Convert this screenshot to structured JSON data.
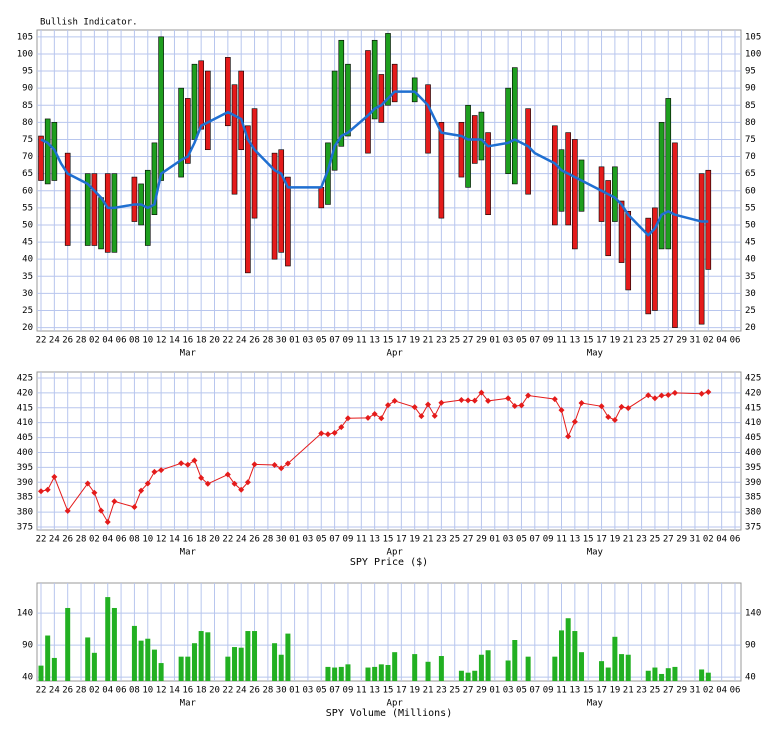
{
  "chart_data": [
    {
      "type": "range-bar",
      "title": "Bullish Indicator.",
      "x": [
        0,
        1,
        2,
        3,
        4,
        7,
        8,
        9,
        10,
        11,
        14,
        15,
        16,
        17,
        18,
        21,
        22,
        23,
        24,
        25,
        28,
        29,
        30,
        31,
        32,
        35,
        36,
        37,
        38,
        42,
        43,
        44,
        45,
        46,
        49,
        50,
        51,
        52,
        53,
        56,
        57,
        58,
        59,
        60,
        63,
        64,
        65,
        66,
        67,
        70,
        71,
        72,
        73,
        74,
        77,
        78,
        79,
        80,
        81,
        84,
        85,
        86,
        87,
        88,
        91,
        92,
        93,
        94,
        95,
        99,
        100
      ],
      "open": [
        76,
        62,
        63,
        null,
        71,
        44,
        65,
        43,
        65,
        42,
        64,
        50,
        44,
        53,
        63,
        64,
        87,
        75,
        98,
        95,
        99,
        91,
        95,
        79,
        84,
        71,
        72,
        64,
        null,
        61,
        56,
        66,
        73,
        76,
        101,
        81,
        94,
        85,
        97,
        86,
        null,
        91,
        null,
        80,
        80,
        61,
        82,
        69,
        77,
        65,
        62,
        null,
        84,
        null,
        79,
        54,
        77,
        75,
        54,
        67,
        63,
        51,
        57,
        54,
        52,
        55,
        43,
        43,
        74,
        65,
        66
      ],
      "close": [
        63,
        81,
        80,
        null,
        44,
        65,
        44,
        58,
        42,
        65,
        51,
        62,
        66,
        74,
        105,
        90,
        68,
        97,
        78,
        72,
        79,
        59,
        72,
        36,
        52,
        40,
        42,
        38,
        null,
        55,
        74,
        95,
        104,
        97,
        71,
        104,
        80,
        106,
        86,
        93,
        null,
        71,
        null,
        52,
        64,
        85,
        68,
        83,
        53,
        90,
        96,
        null,
        59,
        null,
        50,
        72,
        50,
        43,
        69,
        51,
        41,
        67,
        39,
        31,
        24,
        25,
        80,
        87,
        20,
        21,
        37
      ],
      "up_color": "#1e9e1e",
      "down_color": "#e41b1b",
      "line": {
        "color": "#1f6fd1",
        "values": [
          75,
          74,
          72,
          68,
          65,
          62,
          60,
          58,
          55,
          55,
          56,
          56,
          55,
          56,
          65,
          69,
          70,
          74,
          79,
          80,
          83,
          82,
          81,
          75,
          72,
          66,
          65,
          61,
          61,
          61,
          66,
          73,
          76,
          77,
          82,
          84,
          85,
          87,
          89,
          89,
          87,
          85,
          81,
          77,
          76,
          75,
          75,
          75,
          73,
          74,
          75,
          74,
          73,
          71,
          68,
          66,
          65,
          64,
          63,
          60,
          59,
          58,
          56,
          53,
          47,
          49,
          53,
          54,
          53,
          51,
          51
        ]
      },
      "xlim": [
        -0.6,
        104.9
      ],
      "xticks": [
        {
          "value": 0,
          "label": "22"
        },
        {
          "value": 2,
          "label": "24"
        },
        {
          "value": 4,
          "label": "26"
        },
        {
          "value": 6,
          "label": "28"
        },
        {
          "value": 8,
          "label": "02"
        },
        {
          "value": 10,
          "label": "04"
        },
        {
          "value": 12,
          "label": "06"
        },
        {
          "value": 14,
          "label": "08"
        },
        {
          "value": 16,
          "label": "10"
        },
        {
          "value": 18,
          "label": "12"
        },
        {
          "value": 20,
          "label": "14"
        },
        {
          "value": 22,
          "label": "16"
        },
        {
          "value": 24,
          "label": "18"
        },
        {
          "value": 26,
          "label": "20"
        },
        {
          "value": 28,
          "label": "22"
        },
        {
          "value": 30,
          "label": "24"
        },
        {
          "value": 32,
          "label": "26"
        },
        {
          "value": 34,
          "label": "28"
        },
        {
          "value": 36,
          "label": "30"
        },
        {
          "value": 38,
          "label": "01"
        },
        {
          "value": 40,
          "label": "03"
        },
        {
          "value": 42,
          "label": "05"
        },
        {
          "value": 44,
          "label": "07"
        },
        {
          "value": 46,
          "label": "09"
        },
        {
          "value": 48,
          "label": "11"
        },
        {
          "value": 50,
          "label": "13"
        },
        {
          "value": 52,
          "label": "15"
        },
        {
          "value": 54,
          "label": "17"
        },
        {
          "value": 56,
          "label": "19"
        },
        {
          "value": 58,
          "label": "21"
        },
        {
          "value": 60,
          "label": "23"
        },
        {
          "value": 62,
          "label": "25"
        },
        {
          "value": 64,
          "label": "27"
        },
        {
          "value": 66,
          "label": "29"
        },
        {
          "value": 68,
          "label": "01"
        },
        {
          "value": 70,
          "label": "03"
        },
        {
          "value": 72,
          "label": "05"
        },
        {
          "value": 74,
          "label": "07"
        },
        {
          "value": 76,
          "label": "09"
        },
        {
          "value": 78,
          "label": "11"
        },
        {
          "value": 80,
          "label": "13"
        },
        {
          "value": 82,
          "label": "15"
        },
        {
          "value": 84,
          "label": "17"
        },
        {
          "value": 86,
          "label": "19"
        },
        {
          "value": 88,
          "label": "21"
        },
        {
          "value": 90,
          "label": "23"
        },
        {
          "value": 92,
          "label": "25"
        },
        {
          "value": 94,
          "label": "27"
        },
        {
          "value": 96,
          "label": "29"
        },
        {
          "value": 98,
          "label": "31"
        },
        {
          "value": 100,
          "label": "02"
        },
        {
          "value": 102,
          "label": "04"
        },
        {
          "value": 104,
          "label": "06"
        }
      ],
      "month_labels": [
        {
          "value": 22,
          "label": "Mar"
        },
        {
          "value": 53,
          "label": "Apr"
        },
        {
          "value": 83,
          "label": "May"
        }
      ],
      "ylim": [
        19,
        107
      ],
      "yticks": [
        20,
        25,
        30,
        35,
        40,
        45,
        50,
        55,
        60,
        65,
        70,
        75,
        80,
        85,
        90,
        95,
        100,
        105
      ],
      "grid": true
    },
    {
      "type": "line",
      "xlabel": "SPY Price ($)",
      "x": [
        0,
        1,
        2,
        4,
        7,
        8,
        9,
        10,
        11,
        14,
        15,
        16,
        17,
        18,
        21,
        22,
        23,
        24,
        25,
        28,
        29,
        30,
        31,
        32,
        35,
        36,
        37,
        42,
        43,
        44,
        45,
        46,
        49,
        50,
        51,
        52,
        53,
        56,
        57,
        58,
        59,
        60,
        63,
        64,
        65,
        66,
        67,
        70,
        71,
        72,
        73,
        77,
        78,
        79,
        80,
        81,
        84,
        85,
        86,
        87,
        88,
        91,
        92,
        93,
        94,
        95,
        99,
        100
      ],
      "values": [
        387.0,
        387.5,
        391.8,
        380.4,
        389.6,
        386.5,
        380.5,
        376.7,
        383.6,
        381.7,
        387.2,
        389.6,
        393.5,
        394.1,
        396.4,
        395.9,
        397.3,
        391.5,
        389.5,
        392.6,
        389.5,
        387.5,
        390.0,
        396.0,
        395.8,
        394.7,
        396.3,
        406.4,
        406.1,
        406.6,
        408.5,
        411.5,
        411.6,
        412.9,
        411.5,
        415.9,
        417.3,
        415.2,
        412.2,
        416.1,
        412.3,
        416.7,
        417.6,
        417.5,
        417.4,
        420.1,
        417.3,
        418.2,
        415.6,
        415.8,
        419.1,
        417.9,
        414.2,
        405.4,
        410.3,
        416.6,
        415.5,
        411.9,
        410.9,
        415.3,
        414.9,
        419.2,
        418.2,
        419.1,
        419.3,
        420.0,
        419.7,
        420.3
      ],
      "color": "#e41b1b",
      "xlim": [
        -0.6,
        104.9
      ],
      "xticks": [
        {
          "value": 0,
          "label": "22"
        },
        {
          "value": 2,
          "label": "24"
        },
        {
          "value": 4,
          "label": "26"
        },
        {
          "value": 6,
          "label": "28"
        },
        {
          "value": 8,
          "label": "02"
        },
        {
          "value": 10,
          "label": "04"
        },
        {
          "value": 12,
          "label": "06"
        },
        {
          "value": 14,
          "label": "08"
        },
        {
          "value": 16,
          "label": "10"
        },
        {
          "value": 18,
          "label": "12"
        },
        {
          "value": 20,
          "label": "14"
        },
        {
          "value": 22,
          "label": "16"
        },
        {
          "value": 24,
          "label": "18"
        },
        {
          "value": 26,
          "label": "20"
        },
        {
          "value": 28,
          "label": "22"
        },
        {
          "value": 30,
          "label": "24"
        },
        {
          "value": 32,
          "label": "26"
        },
        {
          "value": 34,
          "label": "28"
        },
        {
          "value": 36,
          "label": "30"
        },
        {
          "value": 38,
          "label": "01"
        },
        {
          "value": 40,
          "label": "03"
        },
        {
          "value": 42,
          "label": "05"
        },
        {
          "value": 44,
          "label": "07"
        },
        {
          "value": 46,
          "label": "09"
        },
        {
          "value": 48,
          "label": "11"
        },
        {
          "value": 50,
          "label": "13"
        },
        {
          "value": 52,
          "label": "15"
        },
        {
          "value": 54,
          "label": "17"
        },
        {
          "value": 56,
          "label": "19"
        },
        {
          "value": 58,
          "label": "21"
        },
        {
          "value": 60,
          "label": "23"
        },
        {
          "value": 62,
          "label": "25"
        },
        {
          "value": 64,
          "label": "27"
        },
        {
          "value": 66,
          "label": "29"
        },
        {
          "value": 68,
          "label": "01"
        },
        {
          "value": 70,
          "label": "03"
        },
        {
          "value": 72,
          "label": "05"
        },
        {
          "value": 74,
          "label": "07"
        },
        {
          "value": 76,
          "label": "09"
        },
        {
          "value": 78,
          "label": "11"
        },
        {
          "value": 80,
          "label": "13"
        },
        {
          "value": 82,
          "label": "15"
        },
        {
          "value": 84,
          "label": "17"
        },
        {
          "value": 86,
          "label": "19"
        },
        {
          "value": 88,
          "label": "21"
        },
        {
          "value": 90,
          "label": "23"
        },
        {
          "value": 92,
          "label": "25"
        },
        {
          "value": 94,
          "label": "27"
        },
        {
          "value": 96,
          "label": "29"
        },
        {
          "value": 98,
          "label": "31"
        },
        {
          "value": 100,
          "label": "02"
        },
        {
          "value": 102,
          "label": "04"
        },
        {
          "value": 104,
          "label": "06"
        }
      ],
      "month_labels": [
        {
          "value": 22,
          "label": "Mar"
        },
        {
          "value": 53,
          "label": "Apr"
        },
        {
          "value": 83,
          "label": "May"
        }
      ],
      "ylim": [
        374,
        427
      ],
      "yticks": [
        375,
        380,
        385,
        390,
        395,
        400,
        405,
        410,
        415,
        420,
        425
      ],
      "grid": true
    },
    {
      "type": "bar",
      "xlabel": "SPY Volume (Millions)",
      "x": [
        0,
        1,
        2,
        4,
        7,
        8,
        10,
        11,
        14,
        15,
        16,
        17,
        18,
        21,
        22,
        23,
        24,
        25,
        28,
        29,
        30,
        31,
        32,
        35,
        36,
        37,
        43,
        44,
        45,
        46,
        49,
        50,
        51,
        52,
        53,
        56,
        58,
        60,
        63,
        64,
        65,
        66,
        67,
        70,
        71,
        73,
        77,
        78,
        79,
        80,
        81,
        84,
        85,
        86,
        87,
        88,
        91,
        92,
        93,
        94,
        95,
        99,
        100
      ],
      "values": [
        58,
        105,
        70,
        148,
        102,
        78,
        165,
        148,
        120,
        97,
        100,
        83,
        62,
        72,
        72,
        93,
        112,
        110,
        72,
        87,
        86,
        112,
        112,
        93,
        75,
        108,
        56,
        55,
        56,
        60,
        55,
        56,
        60,
        59,
        79,
        76,
        64,
        73,
        50,
        47,
        50,
        75,
        82,
        66,
        98,
        72,
        72,
        113,
        132,
        112,
        79,
        65,
        55,
        103,
        76,
        75,
        50,
        55,
        45,
        54,
        56,
        52,
        47
      ],
      "color": "#22b022",
      "xlim": [
        -0.6,
        104.9
      ],
      "xticks": [
        {
          "value": 0,
          "label": "22"
        },
        {
          "value": 2,
          "label": "24"
        },
        {
          "value": 4,
          "label": "26"
        },
        {
          "value": 6,
          "label": "28"
        },
        {
          "value": 8,
          "label": "02"
        },
        {
          "value": 10,
          "label": "04"
        },
        {
          "value": 12,
          "label": "06"
        },
        {
          "value": 14,
          "label": "08"
        },
        {
          "value": 16,
          "label": "10"
        },
        {
          "value": 18,
          "label": "12"
        },
        {
          "value": 20,
          "label": "14"
        },
        {
          "value": 22,
          "label": "16"
        },
        {
          "value": 24,
          "label": "18"
        },
        {
          "value": 26,
          "label": "20"
        },
        {
          "value": 28,
          "label": "22"
        },
        {
          "value": 30,
          "label": "24"
        },
        {
          "value": 32,
          "label": "26"
        },
        {
          "value": 34,
          "label": "28"
        },
        {
          "value": 36,
          "label": "30"
        },
        {
          "value": 38,
          "label": "01"
        },
        {
          "value": 40,
          "label": "03"
        },
        {
          "value": 42,
          "label": "05"
        },
        {
          "value": 44,
          "label": "07"
        },
        {
          "value": 46,
          "label": "09"
        },
        {
          "value": 48,
          "label": "11"
        },
        {
          "value": 50,
          "label": "13"
        },
        {
          "value": 52,
          "label": "15"
        },
        {
          "value": 54,
          "label": "17"
        },
        {
          "value": 56,
          "label": "19"
        },
        {
          "value": 58,
          "label": "21"
        },
        {
          "value": 60,
          "label": "23"
        },
        {
          "value": 62,
          "label": "25"
        },
        {
          "value": 64,
          "label": "27"
        },
        {
          "value": 66,
          "label": "29"
        },
        {
          "value": 68,
          "label": "01"
        },
        {
          "value": 70,
          "label": "03"
        },
        {
          "value": 72,
          "label": "05"
        },
        {
          "value": 74,
          "label": "07"
        },
        {
          "value": 76,
          "label": "09"
        },
        {
          "value": 78,
          "label": "11"
        },
        {
          "value": 80,
          "label": "13"
        },
        {
          "value": 82,
          "label": "15"
        },
        {
          "value": 84,
          "label": "17"
        },
        {
          "value": 86,
          "label": "19"
        },
        {
          "value": 88,
          "label": "21"
        },
        {
          "value": 90,
          "label": "23"
        },
        {
          "value": 92,
          "label": "25"
        },
        {
          "value": 94,
          "label": "27"
        },
        {
          "value": 96,
          "label": "29"
        },
        {
          "value": 98,
          "label": "31"
        },
        {
          "value": 100,
          "label": "02"
        },
        {
          "value": 102,
          "label": "04"
        },
        {
          "value": 104,
          "label": "06"
        }
      ],
      "month_labels": [
        {
          "value": 22,
          "label": "Mar"
        },
        {
          "value": 53,
          "label": "Apr"
        },
        {
          "value": 83,
          "label": "May"
        }
      ],
      "ylim": [
        34,
        187
      ],
      "yticks": [
        40,
        90,
        140
      ],
      "grid": true
    }
  ]
}
